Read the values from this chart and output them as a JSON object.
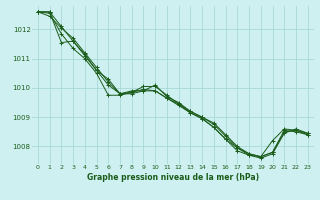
{
  "title": "Graphe pression niveau de la mer (hPa)",
  "bg_color": "#cff0f0",
  "grid_color": "#a8d8d8",
  "line_color": "#1a5c1a",
  "marker_color": "#1a5c1a",
  "xlim": [
    -0.5,
    23.5
  ],
  "ylim": [
    1007.4,
    1012.8
  ],
  "yticks": [
    1008,
    1009,
    1010,
    1011,
    1012
  ],
  "xticks": [
    0,
    1,
    2,
    3,
    4,
    5,
    6,
    7,
    8,
    9,
    10,
    11,
    12,
    13,
    14,
    15,
    16,
    17,
    18,
    19,
    20,
    21,
    22,
    23
  ],
  "series": [
    [
      1012.6,
      1012.6,
      1012.1,
      1011.6,
      1011.1,
      1010.6,
      1010.1,
      1009.8,
      1009.8,
      1009.9,
      1010.1,
      1009.7,
      1009.5,
      1009.2,
      1009.0,
      1008.8,
      1008.4,
      1008.0,
      1007.75,
      1007.65,
      1008.2,
      1008.6,
      1008.55,
      1008.45
    ],
    [
      1012.6,
      1012.6,
      1011.55,
      1011.6,
      1011.15,
      1010.6,
      1010.3,
      1009.8,
      1009.85,
      1009.95,
      1009.9,
      1009.65,
      1009.45,
      1009.2,
      1009.0,
      1008.75,
      1008.35,
      1007.95,
      1007.7,
      1007.65,
      1007.8,
      1008.5,
      1008.55,
      1008.4
    ],
    [
      1012.6,
      1012.55,
      1011.85,
      1011.35,
      1011.0,
      1010.5,
      1009.75,
      1009.75,
      1009.85,
      1010.05,
      1010.05,
      1009.75,
      1009.45,
      1009.15,
      1008.95,
      1008.65,
      1008.25,
      1007.85,
      1007.7,
      1007.6,
      1007.75,
      1008.45,
      1008.6,
      1008.45
    ],
    [
      1012.6,
      1012.45,
      1012.05,
      1011.7,
      1011.2,
      1010.7,
      1010.2,
      1009.8,
      1009.9,
      1009.9,
      1009.9,
      1009.65,
      1009.4,
      1009.15,
      1008.95,
      1008.65,
      1008.25,
      1007.95,
      1007.75,
      1007.65,
      1007.8,
      1008.55,
      1008.5,
      1008.4
    ]
  ]
}
